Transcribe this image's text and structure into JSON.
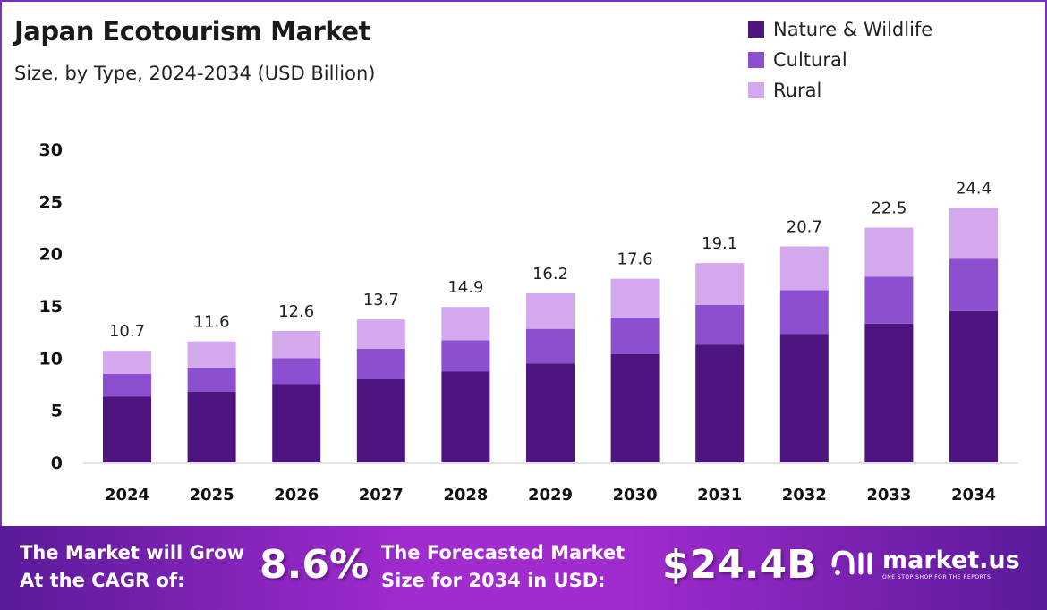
{
  "header": {
    "title": "Japan Ecotourism Market",
    "subtitle": "Size, by Type, 2024-2034 (USD Billion)"
  },
  "colors": {
    "nature_wildlife": "#4e1580",
    "cultural": "#8b4fcf",
    "rural": "#d3a8ec",
    "border": "#7b2fbf"
  },
  "chart_data": {
    "type": "bar",
    "stacked": true,
    "title": "Japan Ecotourism Market",
    "subtitle": "Size, by Type, 2024-2034 (USD Billion)",
    "categories": [
      "2024",
      "2025",
      "2026",
      "2027",
      "2028",
      "2029",
      "2030",
      "2031",
      "2032",
      "2033",
      "2034"
    ],
    "series": [
      {
        "name": "Nature & Wildlife",
        "values": [
          6.3,
          6.8,
          7.5,
          8.0,
          8.7,
          9.5,
          10.4,
          11.3,
          12.3,
          13.3,
          14.5
        ]
      },
      {
        "name": "Cultural",
        "values": [
          2.2,
          2.3,
          2.5,
          2.9,
          3.0,
          3.3,
          3.5,
          3.8,
          4.2,
          4.5,
          5.0
        ]
      },
      {
        "name": "Rural",
        "values": [
          2.2,
          2.5,
          2.6,
          2.8,
          3.2,
          3.4,
          3.7,
          4.0,
          4.2,
          4.7,
          4.9
        ]
      }
    ],
    "totals": [
      "10.7",
      "11.6",
      "12.6",
      "13.7",
      "14.9",
      "16.2",
      "17.6",
      "19.1",
      "20.7",
      "22.5",
      "24.4"
    ],
    "yticks": [
      "0",
      "5",
      "10",
      "15",
      "20",
      "25",
      "30"
    ],
    "ylim": [
      0,
      30
    ],
    "grid": false,
    "legend_position": "top-right"
  },
  "footer": {
    "cagr_label_line1": "The Market will Grow",
    "cagr_label_line2": "At the CAGR of:",
    "cagr_value": "8.6%",
    "forecast_label_line1": "The Forecasted Market",
    "forecast_label_line2": "Size for 2034 in USD:",
    "forecast_value": "$24.4B",
    "brand_name": "market.us",
    "brand_tagline": "ONE STOP SHOP FOR THE REPORTS"
  }
}
